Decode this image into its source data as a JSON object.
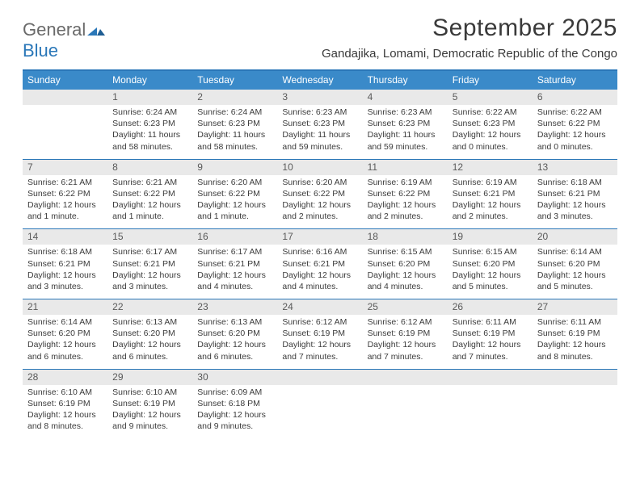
{
  "logo": {
    "word1": "General",
    "word2": "Blue"
  },
  "title": "September 2025",
  "location": "Gandajika, Lomami, Democratic Republic of the Congo",
  "colors": {
    "header_bg": "#3a8ac9",
    "accent": "#2a77b8",
    "daynum_bg": "#e9e9e9",
    "text": "#3a3a3a",
    "logo_gray": "#6a6a6a"
  },
  "dow": [
    "Sunday",
    "Monday",
    "Tuesday",
    "Wednesday",
    "Thursday",
    "Friday",
    "Saturday"
  ],
  "weeks": [
    [
      null,
      {
        "n": "1",
        "sr": "Sunrise: 6:24 AM",
        "ss": "Sunset: 6:23 PM",
        "dl": "Daylight: 11 hours and 58 minutes."
      },
      {
        "n": "2",
        "sr": "Sunrise: 6:24 AM",
        "ss": "Sunset: 6:23 PM",
        "dl": "Daylight: 11 hours and 58 minutes."
      },
      {
        "n": "3",
        "sr": "Sunrise: 6:23 AM",
        "ss": "Sunset: 6:23 PM",
        "dl": "Daylight: 11 hours and 59 minutes."
      },
      {
        "n": "4",
        "sr": "Sunrise: 6:23 AM",
        "ss": "Sunset: 6:23 PM",
        "dl": "Daylight: 11 hours and 59 minutes."
      },
      {
        "n": "5",
        "sr": "Sunrise: 6:22 AM",
        "ss": "Sunset: 6:23 PM",
        "dl": "Daylight: 12 hours and 0 minutes."
      },
      {
        "n": "6",
        "sr": "Sunrise: 6:22 AM",
        "ss": "Sunset: 6:22 PM",
        "dl": "Daylight: 12 hours and 0 minutes."
      }
    ],
    [
      {
        "n": "7",
        "sr": "Sunrise: 6:21 AM",
        "ss": "Sunset: 6:22 PM",
        "dl": "Daylight: 12 hours and 1 minute."
      },
      {
        "n": "8",
        "sr": "Sunrise: 6:21 AM",
        "ss": "Sunset: 6:22 PM",
        "dl": "Daylight: 12 hours and 1 minute."
      },
      {
        "n": "9",
        "sr": "Sunrise: 6:20 AM",
        "ss": "Sunset: 6:22 PM",
        "dl": "Daylight: 12 hours and 1 minute."
      },
      {
        "n": "10",
        "sr": "Sunrise: 6:20 AM",
        "ss": "Sunset: 6:22 PM",
        "dl": "Daylight: 12 hours and 2 minutes."
      },
      {
        "n": "11",
        "sr": "Sunrise: 6:19 AM",
        "ss": "Sunset: 6:22 PM",
        "dl": "Daylight: 12 hours and 2 minutes."
      },
      {
        "n": "12",
        "sr": "Sunrise: 6:19 AM",
        "ss": "Sunset: 6:21 PM",
        "dl": "Daylight: 12 hours and 2 minutes."
      },
      {
        "n": "13",
        "sr": "Sunrise: 6:18 AM",
        "ss": "Sunset: 6:21 PM",
        "dl": "Daylight: 12 hours and 3 minutes."
      }
    ],
    [
      {
        "n": "14",
        "sr": "Sunrise: 6:18 AM",
        "ss": "Sunset: 6:21 PM",
        "dl": "Daylight: 12 hours and 3 minutes."
      },
      {
        "n": "15",
        "sr": "Sunrise: 6:17 AM",
        "ss": "Sunset: 6:21 PM",
        "dl": "Daylight: 12 hours and 3 minutes."
      },
      {
        "n": "16",
        "sr": "Sunrise: 6:17 AM",
        "ss": "Sunset: 6:21 PM",
        "dl": "Daylight: 12 hours and 4 minutes."
      },
      {
        "n": "17",
        "sr": "Sunrise: 6:16 AM",
        "ss": "Sunset: 6:21 PM",
        "dl": "Daylight: 12 hours and 4 minutes."
      },
      {
        "n": "18",
        "sr": "Sunrise: 6:15 AM",
        "ss": "Sunset: 6:20 PM",
        "dl": "Daylight: 12 hours and 4 minutes."
      },
      {
        "n": "19",
        "sr": "Sunrise: 6:15 AM",
        "ss": "Sunset: 6:20 PM",
        "dl": "Daylight: 12 hours and 5 minutes."
      },
      {
        "n": "20",
        "sr": "Sunrise: 6:14 AM",
        "ss": "Sunset: 6:20 PM",
        "dl": "Daylight: 12 hours and 5 minutes."
      }
    ],
    [
      {
        "n": "21",
        "sr": "Sunrise: 6:14 AM",
        "ss": "Sunset: 6:20 PM",
        "dl": "Daylight: 12 hours and 6 minutes."
      },
      {
        "n": "22",
        "sr": "Sunrise: 6:13 AM",
        "ss": "Sunset: 6:20 PM",
        "dl": "Daylight: 12 hours and 6 minutes."
      },
      {
        "n": "23",
        "sr": "Sunrise: 6:13 AM",
        "ss": "Sunset: 6:20 PM",
        "dl": "Daylight: 12 hours and 6 minutes."
      },
      {
        "n": "24",
        "sr": "Sunrise: 6:12 AM",
        "ss": "Sunset: 6:19 PM",
        "dl": "Daylight: 12 hours and 7 minutes."
      },
      {
        "n": "25",
        "sr": "Sunrise: 6:12 AM",
        "ss": "Sunset: 6:19 PM",
        "dl": "Daylight: 12 hours and 7 minutes."
      },
      {
        "n": "26",
        "sr": "Sunrise: 6:11 AM",
        "ss": "Sunset: 6:19 PM",
        "dl": "Daylight: 12 hours and 7 minutes."
      },
      {
        "n": "27",
        "sr": "Sunrise: 6:11 AM",
        "ss": "Sunset: 6:19 PM",
        "dl": "Daylight: 12 hours and 8 minutes."
      }
    ],
    [
      {
        "n": "28",
        "sr": "Sunrise: 6:10 AM",
        "ss": "Sunset: 6:19 PM",
        "dl": "Daylight: 12 hours and 8 minutes."
      },
      {
        "n": "29",
        "sr": "Sunrise: 6:10 AM",
        "ss": "Sunset: 6:19 PM",
        "dl": "Daylight: 12 hours and 9 minutes."
      },
      {
        "n": "30",
        "sr": "Sunrise: 6:09 AM",
        "ss": "Sunset: 6:18 PM",
        "dl": "Daylight: 12 hours and 9 minutes."
      },
      null,
      null,
      null,
      null
    ]
  ]
}
